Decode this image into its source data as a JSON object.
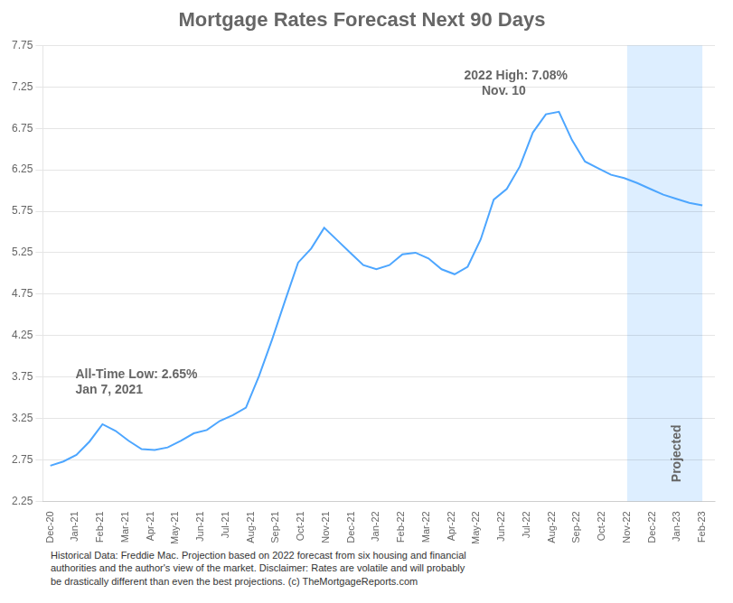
{
  "chart_data": {
    "type": "line",
    "title": "Mortgage Rates Forecast Next 90 Days",
    "x": [
      0,
      0.52,
      1.04,
      1.56,
      2.08,
      2.6,
      3.12,
      3.64,
      4.16,
      4.68,
      5.2,
      5.72,
      6.24,
      6.76,
      7.28,
      7.8,
      8.32,
      8.84,
      9.36,
      9.88,
      10.4,
      10.92,
      11.44,
      11.96,
      12.48,
      13,
      13.52,
      14.04,
      14.56,
      15.08,
      15.6,
      16.12,
      16.64,
      17.16,
      17.68,
      18.2,
      18.72,
      19.24,
      19.76,
      20.28,
      20.8,
      21.32,
      21.84,
      22.36,
      22.88,
      23.4,
      23.92,
      24.44,
      24.96,
      25.48,
      26
    ],
    "values": [
      2.68,
      2.73,
      2.81,
      2.97,
      3.18,
      3.1,
      2.98,
      2.88,
      2.87,
      2.9,
      2.98,
      3.07,
      3.11,
      3.22,
      3.29,
      3.38,
      3.76,
      4.2,
      4.67,
      5.13,
      5.3,
      5.55,
      5.4,
      5.25,
      5.1,
      5.05,
      5.1,
      5.23,
      5.25,
      5.18,
      5.05,
      4.99,
      5.08,
      5.41,
      5.89,
      6.02,
      6.29,
      6.7,
      6.92,
      6.95,
      6.61,
      6.35,
      6.27,
      6.19,
      6.15,
      6.09,
      6.02,
      5.95,
      5.9,
      5.85,
      5.82
    ],
    "color": "#4da6ff",
    "xlim": [
      -0.3,
      26.5
    ],
    "xticks": [
      {
        "value": 0,
        "label": "Dec-20"
      },
      {
        "value": 1,
        "label": "Jan-21"
      },
      {
        "value": 2,
        "label": "Feb-21"
      },
      {
        "value": 3,
        "label": "Mar-21"
      },
      {
        "value": 4,
        "label": "Apr-21"
      },
      {
        "value": 5,
        "label": "May-21"
      },
      {
        "value": 6,
        "label": "Jun-21"
      },
      {
        "value": 7,
        "label": "Jul-21"
      },
      {
        "value": 8,
        "label": "Aug-21"
      },
      {
        "value": 9,
        "label": "Sep-21"
      },
      {
        "value": 10,
        "label": "Oct-21"
      },
      {
        "value": 11,
        "label": "Nov-21"
      },
      {
        "value": 12,
        "label": "Dec-21"
      },
      {
        "value": 13,
        "label": "Jan-22"
      },
      {
        "value": 14,
        "label": "Feb-22"
      },
      {
        "value": 15,
        "label": "Mar-22"
      },
      {
        "value": 16,
        "label": "Apr-22"
      },
      {
        "value": 17,
        "label": "May-22"
      },
      {
        "value": 18,
        "label": "Jun-22"
      },
      {
        "value": 19,
        "label": "Jul-22"
      },
      {
        "value": 20,
        "label": "Aug-22"
      },
      {
        "value": 21,
        "label": "Sep-22"
      },
      {
        "value": 22,
        "label": "Oct-22"
      },
      {
        "value": 23,
        "label": "Nov-22"
      },
      {
        "value": 24,
        "label": "Dec-22"
      },
      {
        "value": 25,
        "label": "Jan-23"
      },
      {
        "value": 26,
        "label": "Feb-23"
      }
    ],
    "ylim": [
      2.25,
      7.75
    ],
    "yticks": [
      2.25,
      2.75,
      3.25,
      3.75,
      4.25,
      4.75,
      5.25,
      5.75,
      6.25,
      6.75,
      7.25,
      7.75
    ],
    "grid": "y",
    "shaded_region": {
      "x": [
        23,
        26
      ],
      "color": "#ddeeff",
      "label": "Projected"
    },
    "annotations": [
      {
        "text": "All-Time Low: 2.65%\nJan 7, 2021"
      },
      {
        "text": "2022 High: 7.08%\n     Nov. 10"
      }
    ],
    "footer": "Historical Data: Freddie Mac. Projection based on 2022 forecast from six housing and financial\nauthorities and the author's view of the market. Disclaimer: Rates are volatile and will probably\nbe drastically different than even the best projections. (c) TheMortgageReports.com"
  }
}
